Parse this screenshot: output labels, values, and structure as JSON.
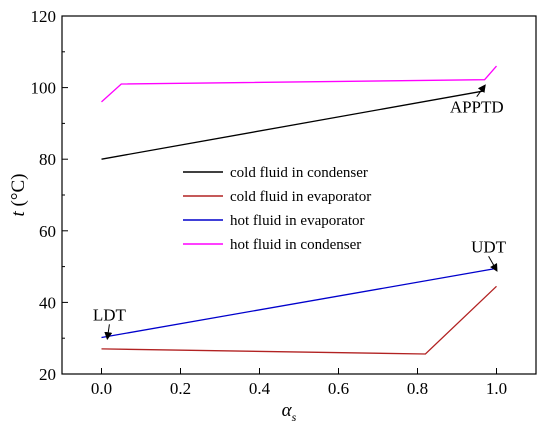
{
  "chart_data": {
    "type": "line",
    "xlabel_main": "α",
    "xlabel_sub": "s",
    "ylabel_main": "t",
    "ylabel_unit": " (°C)",
    "xlim": [
      -0.1,
      1.1
    ],
    "ylim": [
      20,
      120
    ],
    "xticks": [
      0.0,
      0.2,
      0.4,
      0.6,
      0.8,
      1.0
    ],
    "xtick_labels": [
      "0.0",
      "0.2",
      "0.4",
      "0.6",
      "0.8",
      "1.0"
    ],
    "yticks": [
      20,
      40,
      60,
      80,
      100,
      120
    ],
    "ytick_labels": [
      "20",
      "40",
      "60",
      "80",
      "100",
      "120"
    ],
    "legend_position": "center",
    "series": [
      {
        "name": "cold fluid in condenser",
        "color": "#000000",
        "points": [
          [
            0.0,
            80.0
          ],
          [
            0.97,
            99.1
          ]
        ]
      },
      {
        "name": "cold fluid in evaporator",
        "color": "#b22222",
        "points": [
          [
            0.0,
            27.0
          ],
          [
            0.82,
            25.6
          ],
          [
            1.0,
            44.5
          ]
        ]
      },
      {
        "name": "hot fluid in evaporator",
        "color": "#0000cc",
        "points": [
          [
            0.0,
            30.2
          ],
          [
            1.0,
            49.5
          ]
        ]
      },
      {
        "name": "hot fluid in condenser",
        "color": "#ff00ff",
        "points": [
          [
            0.0,
            96.0
          ],
          [
            0.05,
            101.0
          ],
          [
            0.97,
            102.2
          ],
          [
            1.0,
            106.0
          ]
        ]
      }
    ],
    "annotations": [
      {
        "label": "APPTD",
        "arrow_to": [
          0.97,
          100.5
        ],
        "text_at": [
          0.95,
          93.0
        ]
      },
      {
        "label": "UDT",
        "arrow_to": [
          1.0,
          49.0
        ],
        "text_at": [
          0.98,
          54.0
        ]
      },
      {
        "label": "LDT",
        "arrow_to": [
          0.015,
          30.0
        ],
        "text_at": [
          0.02,
          35.0
        ]
      }
    ]
  }
}
